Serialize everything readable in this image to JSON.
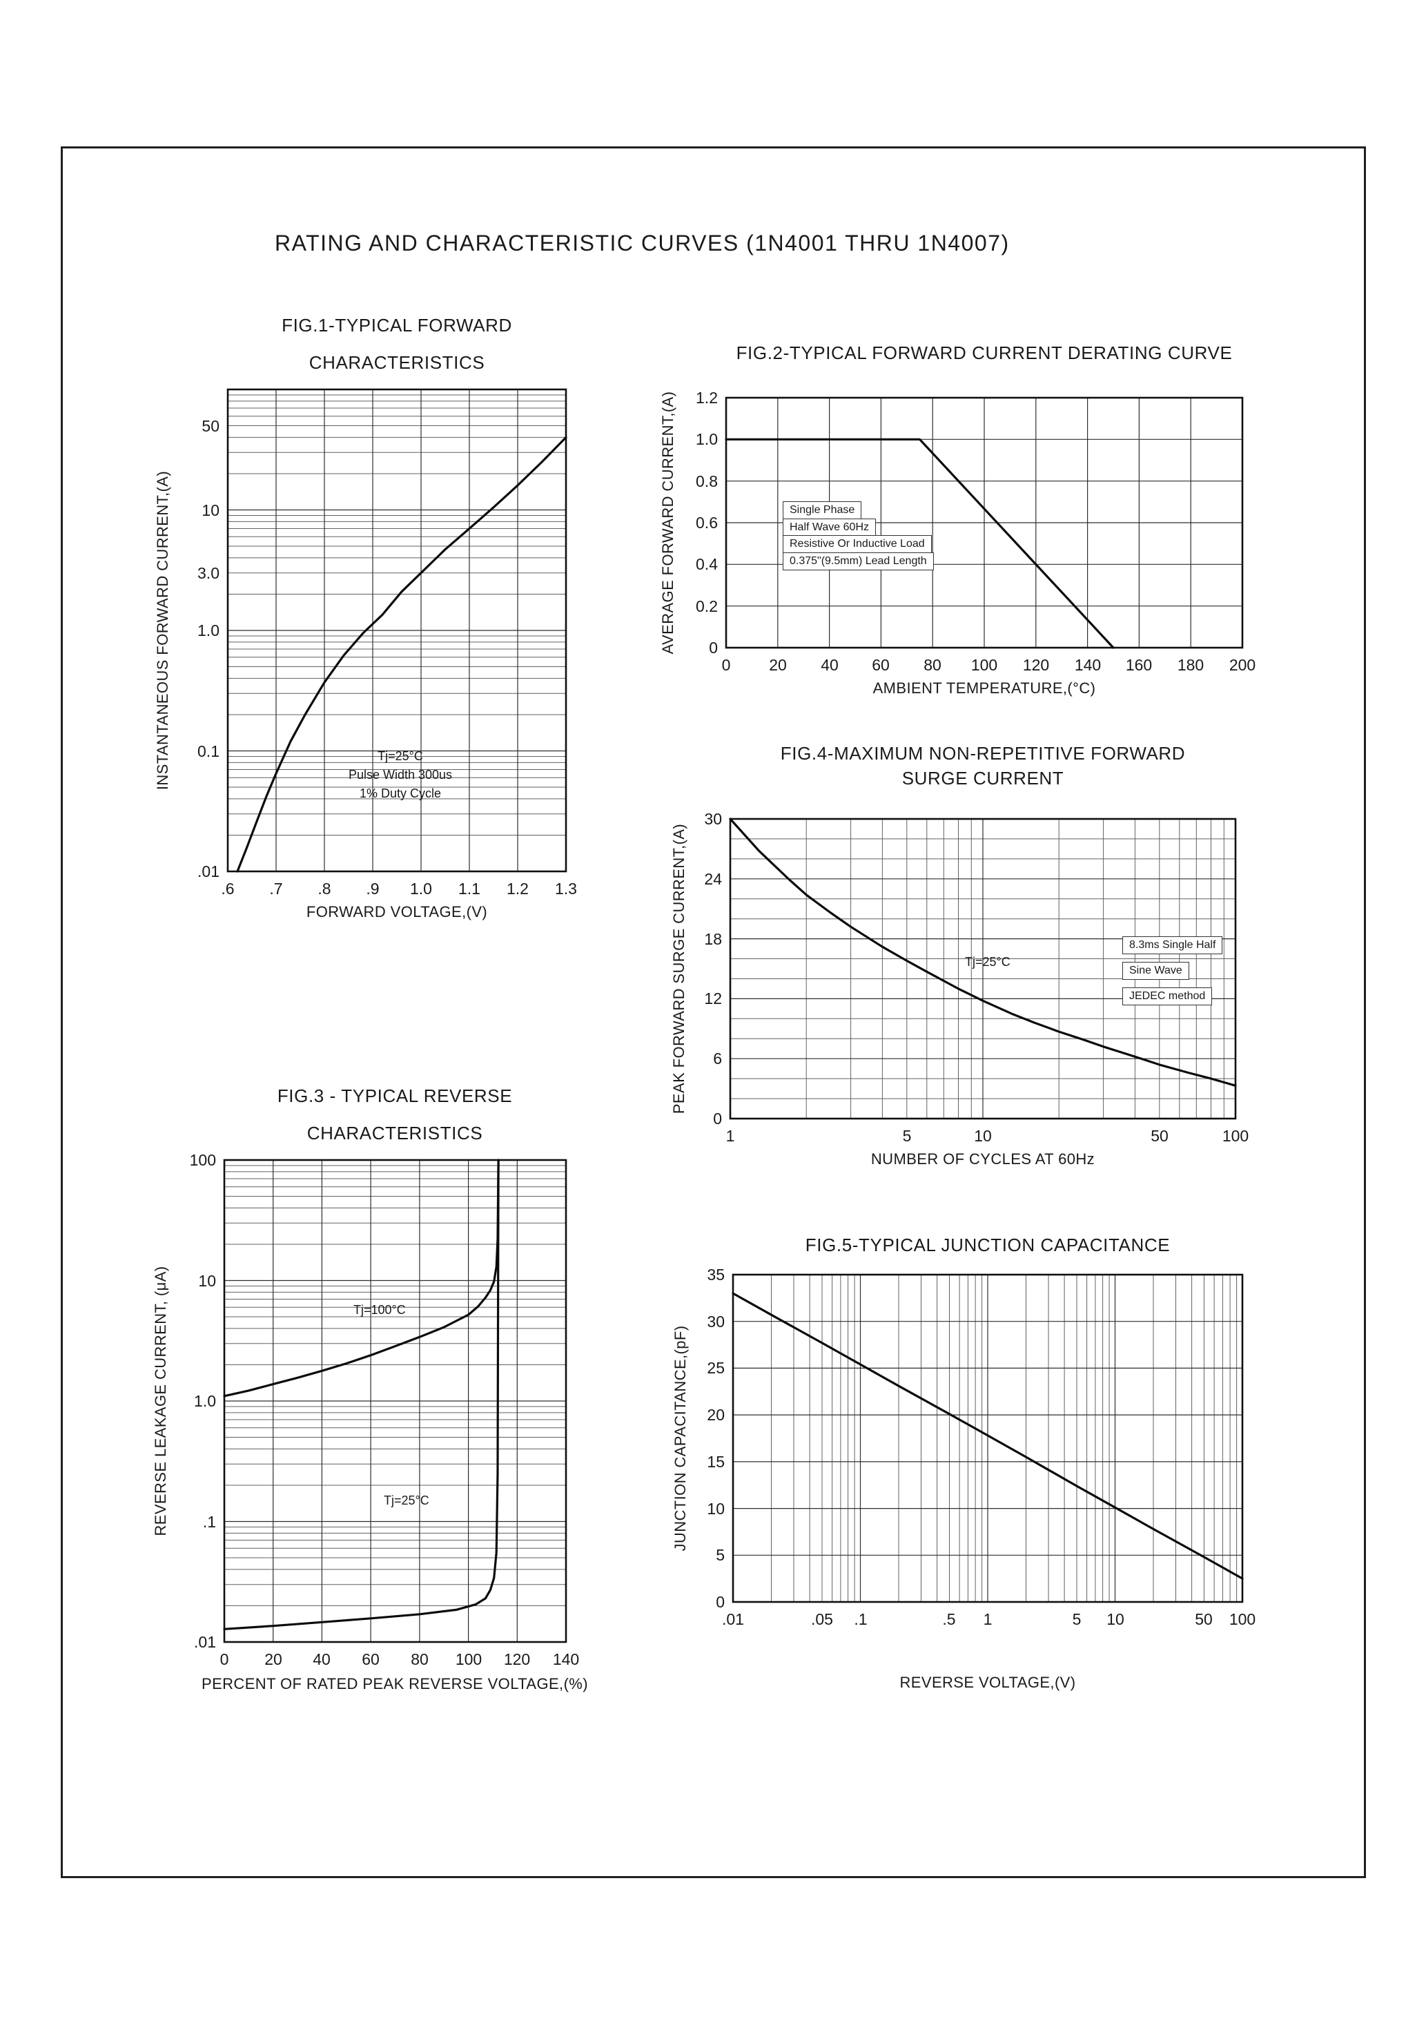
{
  "page": {
    "title": "RATING AND CHARACTERISTIC CURVES (1N4001 THRU 1N4007)"
  },
  "chart_data": [
    {
      "id": "fig1",
      "type": "line",
      "title_lines": [
        "FIG.1-TYPICAL FORWARD",
        "CHARACTERISTICS"
      ],
      "xlabel": "FORWARD VOLTAGE,(V)",
      "ylabel": "INSTANTANEOUS FORWARD CURRENT,(A)",
      "x_axis": {
        "scale": "linear",
        "min": 0.6,
        "max": 1.3,
        "ticks": [
          {
            "v": 0.6,
            "label": ".6"
          },
          {
            "v": 0.7,
            "label": ".7"
          },
          {
            "v": 0.8,
            "label": ".8"
          },
          {
            "v": 0.9,
            "label": ".9"
          },
          {
            "v": 1.0,
            "label": "1.0"
          },
          {
            "v": 1.1,
            "label": "1.1"
          },
          {
            "v": 1.2,
            "label": "1.2"
          },
          {
            "v": 1.3,
            "label": "1.3"
          }
        ]
      },
      "y_axis": {
        "scale": "log",
        "min": 0.01,
        "max": 100,
        "ticks": [
          {
            "v": 50,
            "label": "50"
          },
          {
            "v": 10,
            "label": "10"
          },
          {
            "v": 3,
            "label": "3.0"
          },
          {
            "v": 1,
            "label": "1.0"
          },
          {
            "v": 0.1,
            "label": "0.1"
          },
          {
            "v": 0.01,
            "label": ".01"
          }
        ]
      },
      "series": [
        {
          "name": "forward-current",
          "points": [
            [
              0.62,
              0.01
            ],
            [
              0.64,
              0.016
            ],
            [
              0.66,
              0.026
            ],
            [
              0.68,
              0.042
            ],
            [
              0.7,
              0.065
            ],
            [
              0.73,
              0.12
            ],
            [
              0.76,
              0.2
            ],
            [
              0.8,
              0.37
            ],
            [
              0.84,
              0.62
            ],
            [
              0.88,
              0.95
            ],
            [
              0.92,
              1.35
            ],
            [
              0.96,
              2.1
            ],
            [
              1.0,
              3.0
            ],
            [
              1.05,
              4.7
            ],
            [
              1.1,
              7.0
            ],
            [
              1.15,
              10.5
            ],
            [
              1.2,
              16.0
            ],
            [
              1.25,
              25.0
            ],
            [
              1.3,
              40.0
            ]
          ]
        }
      ],
      "annotations": [
        {
          "boxed": false,
          "lines": [
            "Tj=25°C",
            "Pulse Width 300us",
            "1% Duty Cycle"
          ]
        }
      ]
    },
    {
      "id": "fig2",
      "type": "line",
      "title_lines": [
        "FIG.2-TYPICAL FORWARD CURRENT DERATING CURVE"
      ],
      "xlabel": "AMBIENT TEMPERATURE,(°C)",
      "ylabel": "AVERAGE FORWARD CURRENT,(A)",
      "x_axis": {
        "scale": "linear",
        "min": 0,
        "max": 200,
        "ticks": [
          {
            "v": 0,
            "label": "0"
          },
          {
            "v": 20,
            "label": "20"
          },
          {
            "v": 40,
            "label": "40"
          },
          {
            "v": 60,
            "label": "60"
          },
          {
            "v": 80,
            "label": "80"
          },
          {
            "v": 100,
            "label": "100"
          },
          {
            "v": 120,
            "label": "120"
          },
          {
            "v": 140,
            "label": "140"
          },
          {
            "v": 160,
            "label": "160"
          },
          {
            "v": 180,
            "label": "180"
          },
          {
            "v": 200,
            "label": "200"
          }
        ]
      },
      "y_axis": {
        "scale": "linear",
        "min": 0,
        "max": 1.2,
        "ticks": [
          {
            "v": 0,
            "label": "0"
          },
          {
            "v": 0.2,
            "label": "0.2"
          },
          {
            "v": 0.4,
            "label": "0.4"
          },
          {
            "v": 0.6,
            "label": "0.6"
          },
          {
            "v": 0.8,
            "label": "0.8"
          },
          {
            "v": 1.0,
            "label": "1.0"
          },
          {
            "v": 1.2,
            "label": "1.2"
          }
        ]
      },
      "series": [
        {
          "name": "derating",
          "points": [
            [
              0,
              1.0
            ],
            [
              75,
              1.0
            ],
            [
              150,
              0
            ]
          ]
        }
      ],
      "annotations": [
        {
          "boxed": true,
          "lines": [
            "Single Phase",
            "Half Wave 60Hz",
            "Resistive Or Inductive Load",
            "0.375\"(9.5mm) Lead Length"
          ]
        }
      ]
    },
    {
      "id": "fig4",
      "type": "line",
      "title_lines": [
        "FIG.4-MAXIMUM NON-REPETITIVE FORWARD",
        "SURGE CURRENT"
      ],
      "xlabel": "NUMBER OF CYCLES AT 60Hz",
      "ylabel": "PEAK FORWARD SURGE CURRENT,(A)",
      "x_axis": {
        "scale": "log",
        "min": 1,
        "max": 100,
        "ticks": [
          {
            "v": 1,
            "label": "1"
          },
          {
            "v": 5,
            "label": "5"
          },
          {
            "v": 10,
            "label": "10"
          },
          {
            "v": 50,
            "label": "50"
          },
          {
            "v": 100,
            "label": "100"
          }
        ]
      },
      "y_axis": {
        "scale": "linear",
        "min": 0,
        "max": 30,
        "ticks": [
          {
            "v": 0,
            "label": "0"
          },
          {
            "v": 6,
            "label": "6"
          },
          {
            "v": 12,
            "label": "12"
          },
          {
            "v": 18,
            "label": "18"
          },
          {
            "v": 24,
            "label": "24"
          },
          {
            "v": 30,
            "label": "30"
          }
        ]
      },
      "series": [
        {
          "name": "surge-current",
          "points": [
            [
              1,
              30
            ],
            [
              1.3,
              26.8
            ],
            [
              1.7,
              24.0
            ],
            [
              2,
              22.4
            ],
            [
              2.5,
              20.6
            ],
            [
              3,
              19.2
            ],
            [
              4,
              17.2
            ],
            [
              5,
              15.8
            ],
            [
              6,
              14.7
            ],
            [
              8,
              13.0
            ],
            [
              10,
              11.8
            ],
            [
              13,
              10.5
            ],
            [
              16,
              9.6
            ],
            [
              20,
              8.7
            ],
            [
              25,
              7.9
            ],
            [
              30,
              7.2
            ],
            [
              40,
              6.2
            ],
            [
              50,
              5.4
            ],
            [
              65,
              4.6
            ],
            [
              80,
              4.0
            ],
            [
              100,
              3.3
            ]
          ]
        }
      ],
      "annotations": [
        {
          "boxed": false,
          "lines": [
            "Tj=25°C"
          ]
        },
        {
          "boxed": true,
          "lines": [
            "8.3ms Single Half",
            "Sine Wave",
            "JEDEC method"
          ]
        }
      ]
    },
    {
      "id": "fig3",
      "type": "line",
      "title_lines": [
        "FIG.3 - TYPICAL REVERSE",
        "CHARACTERISTICS"
      ],
      "xlabel": "PERCENT OF RATED PEAK REVERSE VOLTAGE,(%)",
      "ylabel": "REVERSE LEAKAGE CURRENT, (μA)",
      "x_axis": {
        "scale": "linear",
        "min": 0,
        "max": 140,
        "ticks": [
          {
            "v": 0,
            "label": "0"
          },
          {
            "v": 20,
            "label": "20"
          },
          {
            "v": 40,
            "label": "40"
          },
          {
            "v": 60,
            "label": "60"
          },
          {
            "v": 80,
            "label": "80"
          },
          {
            "v": 100,
            "label": "100"
          },
          {
            "v": 120,
            "label": "120"
          },
          {
            "v": 140,
            "label": "140"
          }
        ]
      },
      "y_axis": {
        "scale": "log",
        "min": 0.01,
        "max": 100,
        "ticks": [
          {
            "v": 100,
            "label": "100"
          },
          {
            "v": 10,
            "label": "10"
          },
          {
            "v": 1,
            "label": "1.0"
          },
          {
            "v": 0.1,
            "label": ".1"
          },
          {
            "v": 0.01,
            "label": ".01"
          }
        ]
      },
      "series": [
        {
          "name": "tj-100c",
          "points": [
            [
              0,
              1.1
            ],
            [
              10,
              1.22
            ],
            [
              20,
              1.38
            ],
            [
              30,
              1.56
            ],
            [
              40,
              1.78
            ],
            [
              50,
              2.05
            ],
            [
              60,
              2.4
            ],
            [
              70,
              2.85
            ],
            [
              80,
              3.4
            ],
            [
              90,
              4.1
            ],
            [
              100,
              5.2
            ],
            [
              104,
              6.1
            ],
            [
              107,
              7.2
            ],
            [
              109,
              8.3
            ],
            [
              110.5,
              9.8
            ],
            [
              111.5,
              13
            ],
            [
              112,
              22
            ],
            [
              112.3,
              100
            ]
          ]
        },
        {
          "name": "tj-25c",
          "points": [
            [
              0,
              0.0128
            ],
            [
              20,
              0.0136
            ],
            [
              40,
              0.0146
            ],
            [
              60,
              0.0157
            ],
            [
              80,
              0.017
            ],
            [
              95,
              0.0185
            ],
            [
              103,
              0.0205
            ],
            [
              107,
              0.023
            ],
            [
              109,
              0.027
            ],
            [
              110.5,
              0.034
            ],
            [
              111.5,
              0.055
            ],
            [
              112,
              0.25
            ],
            [
              112.3,
              100
            ]
          ]
        }
      ],
      "annotations": [
        {
          "boxed": false,
          "lines": [
            "Tj=100°C"
          ]
        },
        {
          "boxed": false,
          "lines": [
            "Tj=25°C"
          ]
        }
      ]
    },
    {
      "id": "fig5",
      "type": "line",
      "title_lines": [
        "FIG.5-TYPICAL JUNCTION CAPACITANCE"
      ],
      "xlabel": "REVERSE VOLTAGE,(V)",
      "ylabel": "JUNCTION CAPACITANCE,(pF)",
      "x_axis": {
        "scale": "log",
        "min": 0.01,
        "max": 100,
        "ticks": [
          {
            "v": 0.01,
            "label": ".01"
          },
          {
            "v": 0.05,
            "label": ".05"
          },
          {
            "v": 0.1,
            "label": ".1"
          },
          {
            "v": 0.5,
            "label": ".5"
          },
          {
            "v": 1,
            "label": "1"
          },
          {
            "v": 5,
            "label": "5"
          },
          {
            "v": 10,
            "label": "10"
          },
          {
            "v": 50,
            "label": "50"
          },
          {
            "v": 100,
            "label": "100"
          }
        ]
      },
      "y_axis": {
        "scale": "linear",
        "min": 0,
        "max": 35,
        "ticks": [
          {
            "v": 0,
            "label": "0"
          },
          {
            "v": 5,
            "label": "5"
          },
          {
            "v": 10,
            "label": "10"
          },
          {
            "v": 15,
            "label": "15"
          },
          {
            "v": 20,
            "label": "20"
          },
          {
            "v": 25,
            "label": "25"
          },
          {
            "v": 30,
            "label": "30"
          },
          {
            "v": 35,
            "label": "35"
          }
        ]
      },
      "series": [
        {
          "name": "junction-capacitance",
          "points": [
            [
              0.01,
              33
            ],
            [
              0.02,
              30.7
            ],
            [
              0.05,
              27.7
            ],
            [
              0.1,
              25.4
            ],
            [
              0.2,
              23.1
            ],
            [
              0.5,
              20.1
            ],
            [
              1,
              17.8
            ],
            [
              2,
              15.5
            ],
            [
              5,
              12.4
            ],
            [
              10,
              10.1
            ],
            [
              20,
              7.8
            ],
            [
              50,
              4.8
            ],
            [
              100,
              2.5
            ]
          ]
        }
      ],
      "annotations": []
    }
  ]
}
